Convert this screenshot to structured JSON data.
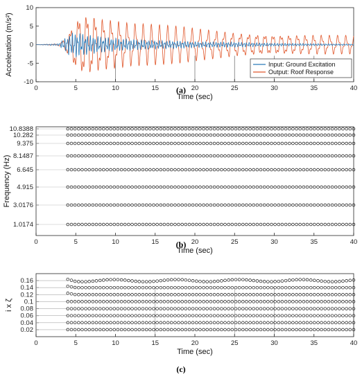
{
  "colors": {
    "input": "#2b7bb9",
    "output": "#e0562a",
    "marker": "#111111"
  },
  "chart_data": [
    {
      "panel": "a",
      "type": "line",
      "caption": "(a)",
      "xlabel": "Time (sec)",
      "ylabel": "Acceleration (m/s²)",
      "xlim": [
        0,
        40
      ],
      "ylim": [
        -10,
        10
      ],
      "xticks": [
        0,
        5,
        10,
        15,
        20,
        25,
        30,
        35,
        40
      ],
      "yticks": [
        -10,
        -5,
        0,
        5,
        10
      ],
      "legend_position": "bottom-right",
      "series": [
        {
          "name": "Input: Ground Excitation",
          "color": "#2b7bb9",
          "x": [
            0,
            2.8,
            3.5,
            4.2,
            5,
            6,
            7,
            8,
            9,
            10,
            12,
            15,
            18,
            20,
            25,
            30,
            35,
            40
          ],
          "amplitude": [
            0,
            0.3,
            1.5,
            3,
            3.5,
            3,
            2.5,
            2.3,
            2,
            1.8,
            1.5,
            1.2,
            1,
            0.8,
            0.7,
            0.4,
            0.3,
            0.2
          ]
        },
        {
          "name": "Output: Roof Response",
          "color": "#e0562a",
          "x": [
            0,
            2.8,
            3.5,
            4.2,
            5,
            6,
            7,
            8,
            9,
            10,
            12,
            15,
            18,
            20,
            25,
            30,
            35,
            40
          ],
          "amplitude": [
            0,
            0.2,
            1.5,
            4,
            8,
            9.5,
            9,
            8,
            7.5,
            7,
            6,
            5.5,
            5,
            4.5,
            3.5,
            3,
            2.8,
            2.5
          ]
        }
      ]
    },
    {
      "panel": "b",
      "type": "scatter",
      "caption": "(b)",
      "xlabel": "Time (sec)",
      "ylabel": "Frequency (Hz)",
      "xlim": [
        0,
        40
      ],
      "xticks": [
        0,
        5,
        10,
        15,
        20,
        25,
        30,
        35,
        40
      ],
      "ytick_labels": [
        "10.8388",
        "10.282",
        "9.375",
        "8.1487",
        "6.645",
        "4.915",
        "3.0176",
        "1.0174"
      ],
      "time_start": 4,
      "time_end": 40,
      "rows": 8
    },
    {
      "panel": "c",
      "type": "scatter",
      "caption": "(c)",
      "xlabel": "Time (sec)",
      "ylabel": "i x ζ",
      "xlim": [
        0,
        40
      ],
      "ylim": [
        0,
        0.18
      ],
      "xticks": [
        0,
        5,
        10,
        15,
        20,
        25,
        30,
        35,
        40
      ],
      "yticks": [
        0.02,
        0.04,
        0.06,
        0.08,
        0.1,
        0.12,
        0.14,
        0.16
      ],
      "ytick_labels": [
        "0.02",
        "0.04",
        "0.06",
        "0.08",
        "0.1",
        "0.12",
        "0.14",
        "0.16"
      ],
      "time_start": 4,
      "time_end": 40,
      "levels": [
        0.02,
        0.04,
        0.06,
        0.08,
        0.1,
        0.12,
        0.14,
        0.16
      ]
    }
  ]
}
